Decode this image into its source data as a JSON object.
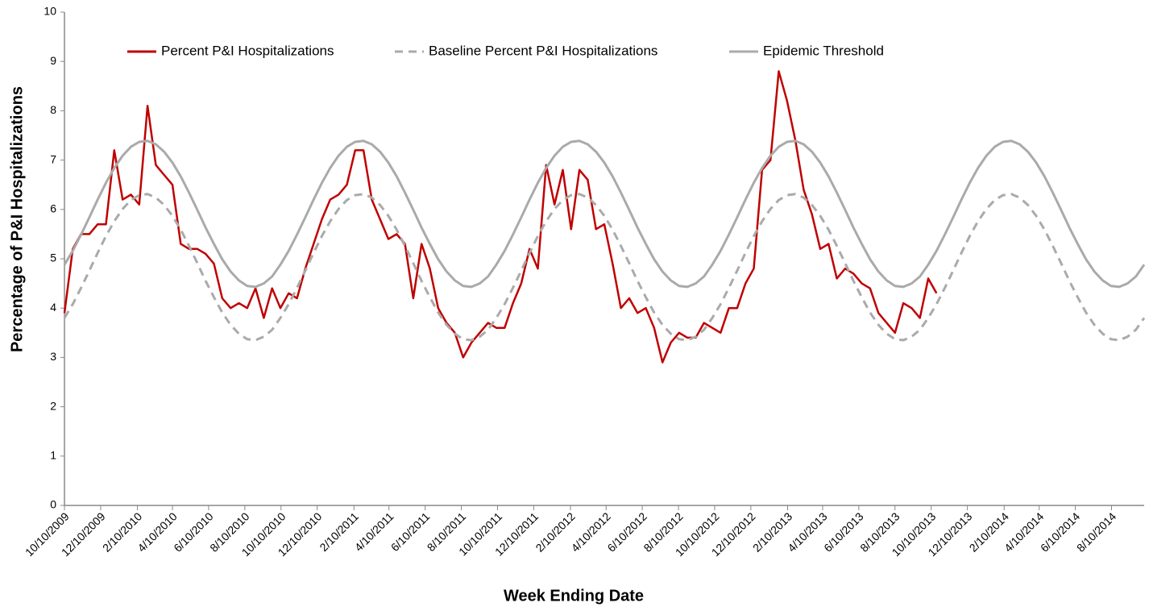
{
  "chart_data": {
    "type": "line",
    "x_label": "Week Ending Date",
    "y_label": "Percentage of P&I Hospitalizations",
    "x": [
      "2009-10-10",
      "2009-10-24",
      "2009-11-07",
      "2009-11-21",
      "2009-12-05",
      "2009-12-19",
      "2010-01-02",
      "2010-01-16",
      "2010-01-30",
      "2010-02-13",
      "2010-02-27",
      "2010-03-13",
      "2010-03-27",
      "2010-04-10",
      "2010-04-24",
      "2010-05-08",
      "2010-05-22",
      "2010-06-05",
      "2010-06-19",
      "2010-07-03",
      "2010-07-17",
      "2010-07-31",
      "2010-08-14",
      "2010-08-28",
      "2010-09-11",
      "2010-09-25",
      "2010-10-09",
      "2010-10-23",
      "2010-11-06",
      "2010-11-20",
      "2010-12-04",
      "2010-12-18",
      "2011-01-01",
      "2011-01-15",
      "2011-01-29",
      "2011-02-12",
      "2011-02-26",
      "2011-03-12",
      "2011-03-26",
      "2011-04-09",
      "2011-04-23",
      "2011-05-07",
      "2011-05-21",
      "2011-06-04",
      "2011-06-18",
      "2011-07-02",
      "2011-07-16",
      "2011-07-30",
      "2011-08-13",
      "2011-08-27",
      "2011-09-10",
      "2011-09-24",
      "2011-10-08",
      "2011-10-22",
      "2011-11-05",
      "2011-11-19",
      "2011-12-03",
      "2011-12-17",
      "2011-12-31",
      "2012-01-14",
      "2012-01-28",
      "2012-02-11",
      "2012-02-25",
      "2012-03-10",
      "2012-03-24",
      "2012-04-07",
      "2012-04-21",
      "2012-05-05",
      "2012-05-19",
      "2012-06-02",
      "2012-06-16",
      "2012-06-30",
      "2012-07-14",
      "2012-07-28",
      "2012-08-11",
      "2012-08-25",
      "2012-09-08",
      "2012-09-22",
      "2012-10-06",
      "2012-10-20",
      "2012-11-03",
      "2012-11-17",
      "2012-12-01",
      "2012-12-15",
      "2012-12-29",
      "2013-01-12",
      "2013-01-26",
      "2013-02-09",
      "2013-02-23",
      "2013-03-09",
      "2013-03-23",
      "2013-04-06",
      "2013-04-20",
      "2013-05-04",
      "2013-05-18",
      "2013-06-01",
      "2013-06-15",
      "2013-06-29",
      "2013-07-13",
      "2013-07-27",
      "2013-08-10",
      "2013-08-24",
      "2013-09-07",
      "2013-09-21",
      "2013-10-05",
      "2013-10-19",
      "2013-11-02",
      "2013-11-16",
      "2013-11-30",
      "2013-12-14",
      "2013-12-28",
      "2014-01-11",
      "2014-01-25",
      "2014-02-08",
      "2014-02-22",
      "2014-03-08",
      "2014-03-22",
      "2014-04-05",
      "2014-04-19",
      "2014-05-03",
      "2014-05-17",
      "2014-05-31",
      "2014-06-14",
      "2014-06-28",
      "2014-07-12",
      "2014-07-26",
      "2014-08-09",
      "2014-08-23",
      "2014-09-06",
      "2014-09-20",
      "2014-10-04"
    ],
    "series": [
      {
        "name": "Percent P&I Hospitalizations",
        "color": "#c00000",
        "dashed": false,
        "values": [
          3.9,
          5.2,
          5.5,
          5.5,
          5.7,
          5.7,
          7.2,
          6.2,
          6.3,
          6.1,
          8.1,
          6.9,
          6.7,
          6.5,
          5.3,
          5.2,
          5.2,
          5.1,
          4.9,
          4.2,
          4.0,
          4.1,
          4.0,
          4.4,
          3.8,
          4.4,
          4.0,
          4.3,
          4.2,
          4.8,
          5.3,
          5.8,
          6.2,
          6.3,
          6.5,
          7.2,
          7.2,
          6.2,
          5.8,
          5.4,
          5.5,
          5.3,
          4.2,
          5.3,
          4.8,
          4.0,
          3.7,
          3.5,
          3.0,
          3.3,
          3.5,
          3.7,
          3.6,
          3.6,
          4.1,
          4.5,
          5.2,
          4.8,
          6.9,
          6.1,
          6.8,
          5.6,
          6.8,
          6.6,
          5.6,
          5.7,
          4.9,
          4.0,
          4.2,
          3.9,
          4.0,
          3.6,
          2.9,
          3.3,
          3.5,
          3.4,
          3.4,
          3.7,
          3.6,
          3.5,
          4.0,
          4.0,
          4.5,
          4.8,
          6.8,
          7.0,
          8.8,
          8.2,
          7.4,
          6.4,
          5.9,
          5.2,
          5.3,
          4.6,
          4.8,
          4.7,
          4.5,
          4.4,
          3.9,
          3.7,
          3.5,
          4.1,
          4.0,
          3.8,
          4.6,
          4.3,
          null,
          null,
          null,
          null,
          null,
          null,
          null,
          null,
          null,
          null,
          null,
          null,
          null,
          null,
          null,
          null,
          null,
          null,
          null,
          null,
          null,
          null,
          null,
          null,
          null
        ]
      },
      {
        "name": "Baseline Percent P&I Hospitalizations",
        "color": "#aaaaaa",
        "dashed": true,
        "values": [
          3.8,
          4.08,
          4.41,
          4.76,
          5.12,
          5.46,
          5.76,
          6.01,
          6.19,
          6.29,
          6.31,
          6.24,
          6.09,
          5.87,
          5.59,
          5.26,
          4.91,
          4.55,
          4.22,
          3.91,
          3.66,
          3.48,
          3.37,
          3.35,
          3.42,
          3.56,
          3.8,
          4.08,
          4.41,
          4.76,
          5.12,
          5.46,
          5.76,
          6.01,
          6.19,
          6.29,
          6.31,
          6.24,
          6.09,
          5.87,
          5.59,
          5.26,
          4.91,
          4.55,
          4.22,
          3.91,
          3.66,
          3.48,
          3.37,
          3.35,
          3.42,
          3.56,
          3.8,
          4.08,
          4.41,
          4.76,
          5.12,
          5.46,
          5.76,
          6.01,
          6.19,
          6.29,
          6.31,
          6.24,
          6.09,
          5.87,
          5.59,
          5.26,
          4.91,
          4.55,
          4.22,
          3.91,
          3.66,
          3.48,
          3.37,
          3.35,
          3.42,
          3.56,
          3.8,
          4.08,
          4.41,
          4.76,
          5.12,
          5.46,
          5.76,
          6.01,
          6.19,
          6.29,
          6.31,
          6.24,
          6.09,
          5.87,
          5.59,
          5.26,
          4.91,
          4.55,
          4.22,
          3.91,
          3.66,
          3.48,
          3.37,
          3.35,
          3.42,
          3.56,
          3.8,
          4.08,
          4.41,
          4.76,
          5.12,
          5.46,
          5.76,
          6.01,
          6.19,
          6.29,
          6.31,
          6.24,
          6.09,
          5.87,
          5.59,
          5.26,
          4.91,
          4.55,
          4.22,
          3.91,
          3.66,
          3.48,
          3.37,
          3.35,
          3.42,
          3.56,
          3.8
        ]
      },
      {
        "name": "Epidemic Threshold",
        "color": "#aaaaaa",
        "dashed": false,
        "values": [
          4.88,
          5.16,
          5.49,
          5.84,
          6.2,
          6.54,
          6.84,
          7.09,
          7.27,
          7.37,
          7.39,
          7.32,
          7.17,
          6.95,
          6.67,
          6.34,
          5.99,
          5.63,
          5.3,
          4.99,
          4.74,
          4.56,
          4.45,
          4.43,
          4.5,
          4.64,
          4.88,
          5.16,
          5.49,
          5.84,
          6.2,
          6.54,
          6.84,
          7.09,
          7.27,
          7.37,
          7.39,
          7.32,
          7.17,
          6.95,
          6.67,
          6.34,
          5.99,
          5.63,
          5.3,
          4.99,
          4.74,
          4.56,
          4.45,
          4.43,
          4.5,
          4.64,
          4.88,
          5.16,
          5.49,
          5.84,
          6.2,
          6.54,
          6.84,
          7.09,
          7.27,
          7.37,
          7.39,
          7.32,
          7.17,
          6.95,
          6.67,
          6.34,
          5.99,
          5.63,
          5.3,
          4.99,
          4.74,
          4.56,
          4.45,
          4.43,
          4.5,
          4.64,
          4.88,
          5.16,
          5.49,
          5.84,
          6.2,
          6.54,
          6.84,
          7.09,
          7.27,
          7.37,
          7.39,
          7.32,
          7.17,
          6.95,
          6.67,
          6.34,
          5.99,
          5.63,
          5.3,
          4.99,
          4.74,
          4.56,
          4.45,
          4.43,
          4.5,
          4.64,
          4.88,
          5.16,
          5.49,
          5.84,
          6.2,
          6.54,
          6.84,
          7.09,
          7.27,
          7.37,
          7.39,
          7.32,
          7.17,
          6.95,
          6.67,
          6.34,
          5.99,
          5.63,
          5.3,
          4.99,
          4.74,
          4.56,
          4.45,
          4.43,
          4.5,
          4.64,
          4.88
        ]
      }
    ],
    "xlim": [
      "2009-10-10",
      "2014-10-04"
    ],
    "xticks": [
      {
        "value": "2009-10-10",
        "label": "10/10/2009"
      },
      {
        "value": "2009-12-10",
        "label": "12/10/2009"
      },
      {
        "value": "2010-02-10",
        "label": "2/10/2010"
      },
      {
        "value": "2010-04-10",
        "label": "4/10/2010"
      },
      {
        "value": "2010-06-10",
        "label": "6/10/2010"
      },
      {
        "value": "2010-08-10",
        "label": "8/10/2010"
      },
      {
        "value": "2010-10-10",
        "label": "10/10/2010"
      },
      {
        "value": "2010-12-10",
        "label": "12/10/2010"
      },
      {
        "value": "2011-02-10",
        "label": "2/10/2011"
      },
      {
        "value": "2011-04-10",
        "label": "4/10/2011"
      },
      {
        "value": "2011-06-10",
        "label": "6/10/2011"
      },
      {
        "value": "2011-08-10",
        "label": "8/10/2011"
      },
      {
        "value": "2011-10-10",
        "label": "10/10/2011"
      },
      {
        "value": "2011-12-10",
        "label": "12/10/2011"
      },
      {
        "value": "2012-02-10",
        "label": "2/10/2012"
      },
      {
        "value": "2012-04-10",
        "label": "4/10/2012"
      },
      {
        "value": "2012-06-10",
        "label": "6/10/2012"
      },
      {
        "value": "2012-08-10",
        "label": "8/10/2012"
      },
      {
        "value": "2012-10-10",
        "label": "10/10/2012"
      },
      {
        "value": "2012-12-10",
        "label": "12/10/2012"
      },
      {
        "value": "2013-02-10",
        "label": "2/10/2013"
      },
      {
        "value": "2013-04-10",
        "label": "4/10/2013"
      },
      {
        "value": "2013-06-10",
        "label": "6/10/2013"
      },
      {
        "value": "2013-08-10",
        "label": "8/10/2013"
      },
      {
        "value": "2013-10-10",
        "label": "10/10/2013"
      },
      {
        "value": "2013-12-10",
        "label": "12/10/2013"
      },
      {
        "value": "2014-02-10",
        "label": "2/10/2014"
      },
      {
        "value": "2014-04-10",
        "label": "4/10/2014"
      },
      {
        "value": "2014-06-10",
        "label": "6/10/2014"
      },
      {
        "value": "2014-08-10",
        "label": "8/10/2014"
      }
    ],
    "ylim": [
      0,
      10
    ],
    "yticks": [
      0,
      1,
      2,
      3,
      4,
      5,
      6,
      7,
      8,
      9,
      10
    ],
    "grid": false,
    "legend": "top"
  }
}
